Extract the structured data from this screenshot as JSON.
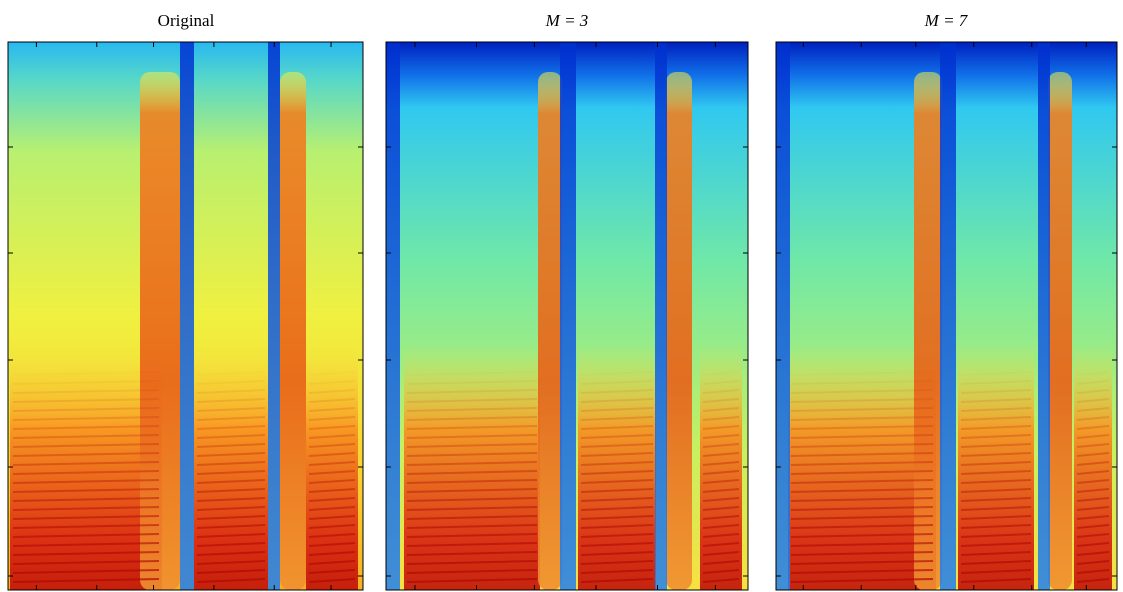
{
  "panels": [
    {
      "title": "Original"
    },
    {
      "title": "M = 3"
    },
    {
      "title": "M = 7"
    }
  ]
}
